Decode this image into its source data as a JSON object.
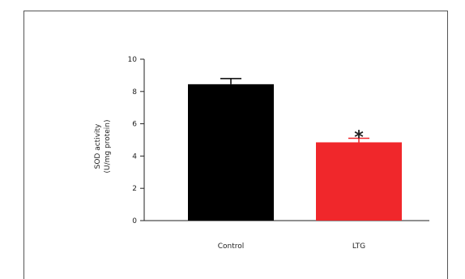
{
  "chart_data": {
    "type": "bar",
    "categories": [
      "Control",
      "LTG"
    ],
    "values": [
      8.45,
      4.85
    ],
    "errors": [
      0.35,
      0.25
    ],
    "colors": [
      "#000000",
      "#f0272b"
    ],
    "ylabel_line1": "SOD activity",
    "ylabel_line2": "(U/mg protein)",
    "ylim": [
      0,
      10
    ],
    "yticks": [
      0,
      2,
      4,
      6,
      8,
      10
    ],
    "annotations": [
      {
        "category": "LTG",
        "text": "*"
      }
    ],
    "grid": false
  }
}
